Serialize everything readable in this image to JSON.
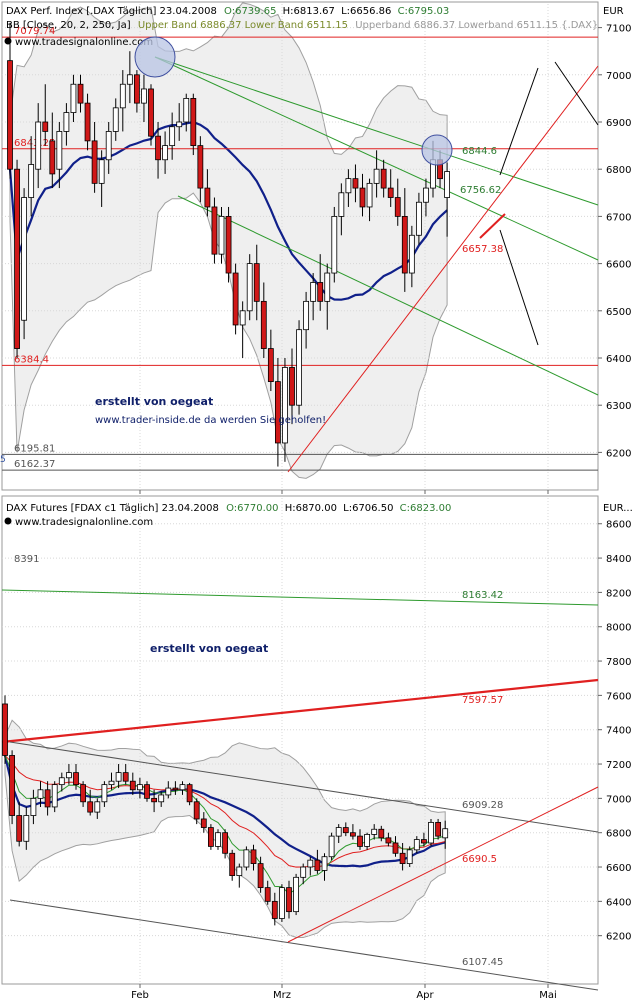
{
  "chart_data": [
    {
      "type": "candlestick",
      "title": "DAX Perf. Index [.DAX  Täglich] 23.04.2008",
      "ohlc": {
        "O": "6739.65",
        "H": "6813.67",
        "L": "6656.86",
        "C": "6795.03"
      },
      "ohlc_colors": {
        "O": "#2e7d32",
        "H": "#000000",
        "L": "#000000",
        "C": "#2e7d32"
      },
      "indicator": "BB [Close, 20, 2, 250, Ja]",
      "indicator_bands": "Upper Band 6886.37 Lower Band 6511.15",
      "indicator_bands_shadow": "Upperband 6886.37 Lowerband 6511.15 {.DAX}",
      "watermark": "www.tradesignalonline.com",
      "unit": "EUR",
      "ylim": [
        6150,
        7150
      ],
      "y_ticks": [
        6200,
        6300,
        6400,
        6500,
        6600,
        6700,
        6800,
        6900,
        7000,
        7100
      ],
      "x_ticks": [
        "Feb",
        "Mrz",
        "Apr",
        "Mai"
      ],
      "levels": [
        {
          "label": "7079.74",
          "value": 7079.74,
          "color": "#e02020"
        },
        {
          "label": "6843.25",
          "value": 6843.25,
          "color": "#e02020"
        },
        {
          "label": "6384.4",
          "value": 6384.4,
          "color": "#e02020"
        },
        {
          "label": "6195.81",
          "value": 6195.81,
          "color": "#555555"
        },
        {
          "label": "6162.37",
          "value": 6162.37,
          "color": "#555555"
        }
      ],
      "labels": [
        {
          "text": "6844.6",
          "color": "#2e7d32"
        },
        {
          "text": "6756.62",
          "color": "#2e7d32"
        },
        {
          "text": "6657.38",
          "color": "#e02020"
        }
      ],
      "annotations": [
        "erstellt von oegeat",
        "www.trader-inside.de da werden Sie geholfen!"
      ],
      "candles": [
        [
          7030,
          7110,
          6780,
          6800
        ],
        [
          6800,
          6820,
          6400,
          6420
        ],
        [
          6480,
          6760,
          6440,
          6740
        ],
        [
          6740,
          6870,
          6700,
          6810
        ],
        [
          6800,
          6940,
          6760,
          6900
        ],
        [
          6900,
          6980,
          6850,
          6880
        ],
        [
          6860,
          6920,
          6760,
          6790
        ],
        [
          6800,
          6900,
          6760,
          6880
        ],
        [
          6880,
          6940,
          6850,
          6920
        ],
        [
          6920,
          7000,
          6900,
          6980
        ],
        [
          6980,
          7000,
          6920,
          6940
        ],
        [
          6940,
          6960,
          6840,
          6860
        ],
        [
          6860,
          6900,
          6750,
          6770
        ],
        [
          6770,
          6840,
          6720,
          6820
        ],
        [
          6820,
          6900,
          6790,
          6880
        ],
        [
          6880,
          6950,
          6860,
          6930
        ],
        [
          6930,
          7010,
          6880,
          6980
        ],
        [
          6980,
          7050,
          6940,
          7000
        ],
        [
          7000,
          7010,
          6920,
          6940
        ],
        [
          6940,
          7000,
          6900,
          6970
        ],
        [
          6970,
          6980,
          6850,
          6870
        ],
        [
          6870,
          6900,
          6780,
          6820
        ],
        [
          6820,
          6880,
          6790,
          6850
        ],
        [
          6850,
          6920,
          6820,
          6890
        ],
        [
          6890,
          6940,
          6860,
          6900
        ],
        [
          6900,
          6960,
          6880,
          6950
        ],
        [
          6950,
          6960,
          6830,
          6850
        ],
        [
          6850,
          6870,
          6730,
          6760
        ],
        [
          6760,
          6800,
          6700,
          6720
        ],
        [
          6720,
          6740,
          6600,
          6620
        ],
        [
          6620,
          6720,
          6600,
          6700
        ],
        [
          6700,
          6720,
          6560,
          6580
        ],
        [
          6580,
          6600,
          6450,
          6470
        ],
        [
          6470,
          6520,
          6400,
          6500
        ],
        [
          6500,
          6620,
          6480,
          6600
        ],
        [
          6600,
          6640,
          6480,
          6520
        ],
        [
          6520,
          6560,
          6400,
          6420
        ],
        [
          6420,
          6460,
          6330,
          6350
        ],
        [
          6350,
          6400,
          6170,
          6220
        ],
        [
          6220,
          6400,
          6180,
          6380
        ],
        [
          6380,
          6420,
          6260,
          6300
        ],
        [
          6300,
          6480,
          6280,
          6460
        ],
        [
          6460,
          6540,
          6420,
          6520
        ],
        [
          6520,
          6580,
          6480,
          6560
        ],
        [
          6560,
          6620,
          6500,
          6520
        ],
        [
          6520,
          6600,
          6460,
          6580
        ],
        [
          6580,
          6720,
          6560,
          6700
        ],
        [
          6700,
          6770,
          6660,
          6750
        ],
        [
          6750,
          6800,
          6720,
          6780
        ],
        [
          6780,
          6810,
          6730,
          6760
        ],
        [
          6760,
          6790,
          6700,
          6720
        ],
        [
          6720,
          6780,
          6690,
          6770
        ],
        [
          6770,
          6840,
          6740,
          6800
        ],
        [
          6800,
          6820,
          6740,
          6760
        ],
        [
          6760,
          6800,
          6720,
          6740
        ],
        [
          6740,
          6780,
          6680,
          6700
        ],
        [
          6700,
          6760,
          6540,
          6580
        ],
        [
          6580,
          6680,
          6550,
          6660
        ],
        [
          6660,
          6750,
          6640,
          6730
        ],
        [
          6730,
          6780,
          6700,
          6760
        ],
        [
          6760,
          6860,
          6740,
          6820
        ],
        [
          6820,
          6840,
          6760,
          6780
        ],
        [
          6740,
          6814,
          6657,
          6795
        ]
      ]
    },
    {
      "type": "candlestick",
      "title": "DAX Futures [FDAX c1  Täglich] 23.04.2008",
      "ohlc": {
        "O": "6770.00",
        "H": "6870.00",
        "L": "6706.50",
        "C": "6823.00"
      },
      "ohlc_colors": {
        "O": "#2e7d32",
        "H": "#000000",
        "L": "#000000",
        "C": "#2e7d32"
      },
      "watermark": "www.tradesignalonline.com",
      "unit": "EUR...",
      "ylim": [
        6000,
        8750
      ],
      "y_ticks": [
        6200,
        6400,
        6600,
        6800,
        7000,
        7200,
        7400,
        7600,
        7800,
        8000,
        8200,
        8400,
        8600
      ],
      "x_ticks": [
        "Feb",
        "Mrz",
        "Apr",
        "Mai"
      ],
      "labels": [
        {
          "text": "8391",
          "color": "#555555"
        },
        {
          "text": "8163.42",
          "color": "#2e7d32"
        },
        {
          "text": "7597.57",
          "color": "#e02020"
        },
        {
          "text": "6909.28",
          "color": "#555555"
        },
        {
          "text": "6690.5",
          "color": "#e02020"
        },
        {
          "text": "6107.45",
          "color": "#555555"
        }
      ],
      "annotations": [
        "erstellt von oegeat"
      ],
      "candles": [
        [
          7550,
          7600,
          7200,
          7250
        ],
        [
          7250,
          7280,
          6850,
          6900
        ],
        [
          6900,
          6980,
          6720,
          6750
        ],
        [
          6750,
          6950,
          6700,
          6900
        ],
        [
          6900,
          7050,
          6850,
          7000
        ],
        [
          7000,
          7100,
          6950,
          7050
        ],
        [
          7050,
          7100,
          6900,
          6950
        ],
        [
          6950,
          7100,
          6920,
          7080
        ],
        [
          7080,
          7150,
          7040,
          7120
        ],
        [
          7120,
          7200,
          7080,
          7150
        ],
        [
          7150,
          7200,
          7050,
          7080
        ],
        [
          7080,
          7100,
          6950,
          6980
        ],
        [
          6980,
          7050,
          6900,
          6920
        ],
        [
          6920,
          7000,
          6880,
          6980
        ],
        [
          6980,
          7100,
          6950,
          7080
        ],
        [
          7080,
          7150,
          7050,
          7100
        ],
        [
          7100,
          7200,
          7060,
          7150
        ],
        [
          7150,
          7200,
          7080,
          7100
        ],
        [
          7100,
          7150,
          7020,
          7050
        ],
        [
          7050,
          7120,
          7000,
          7080
        ],
        [
          7080,
          7100,
          6980,
          7000
        ],
        [
          7000,
          7050,
          6920,
          6980
        ],
        [
          6980,
          7040,
          6950,
          7020
        ],
        [
          7020,
          7100,
          7000,
          7060
        ],
        [
          7060,
          7100,
          7020,
          7050
        ],
        [
          7050,
          7100,
          7020,
          7080
        ],
        [
          7080,
          7090,
          6960,
          6980
        ],
        [
          6980,
          7000,
          6850,
          6880
        ],
        [
          6880,
          6920,
          6800,
          6830
        ],
        [
          6830,
          6850,
          6700,
          6720
        ],
        [
          6720,
          6820,
          6700,
          6800
        ],
        [
          6800,
          6820,
          6650,
          6680
        ],
        [
          6680,
          6700,
          6520,
          6550
        ],
        [
          6550,
          6620,
          6480,
          6600
        ],
        [
          6600,
          6720,
          6580,
          6700
        ],
        [
          6700,
          6730,
          6580,
          6620
        ],
        [
          6620,
          6660,
          6450,
          6480
        ],
        [
          6480,
          6520,
          6380,
          6400
        ],
        [
          6400,
          6450,
          6260,
          6300
        ],
        [
          6300,
          6500,
          6280,
          6480
        ],
        [
          6480,
          6520,
          6300,
          6340
        ],
        [
          6340,
          6560,
          6320,
          6540
        ],
        [
          6540,
          6620,
          6500,
          6600
        ],
        [
          6600,
          6660,
          6550,
          6640
        ],
        [
          6640,
          6700,
          6560,
          6580
        ],
        [
          6580,
          6680,
          6520,
          6660
        ],
        [
          6660,
          6800,
          6640,
          6780
        ],
        [
          6780,
          6850,
          6740,
          6830
        ],
        [
          6830,
          6860,
          6780,
          6800
        ],
        [
          6800,
          6850,
          6760,
          6780
        ],
        [
          6780,
          6820,
          6700,
          6720
        ],
        [
          6720,
          6800,
          6700,
          6790
        ],
        [
          6790,
          6850,
          6760,
          6820
        ],
        [
          6820,
          6840,
          6750,
          6770
        ],
        [
          6770,
          6800,
          6720,
          6740
        ],
        [
          6740,
          6780,
          6660,
          6680
        ],
        [
          6680,
          6740,
          6580,
          6620
        ],
        [
          6620,
          6720,
          6600,
          6700
        ],
        [
          6700,
          6780,
          6680,
          6760
        ],
        [
          6760,
          6800,
          6720,
          6740
        ],
        [
          6740,
          6880,
          6720,
          6860
        ],
        [
          6860,
          6880,
          6760,
          6780
        ],
        [
          6770,
          6870,
          6706,
          6823
        ]
      ]
    }
  ]
}
